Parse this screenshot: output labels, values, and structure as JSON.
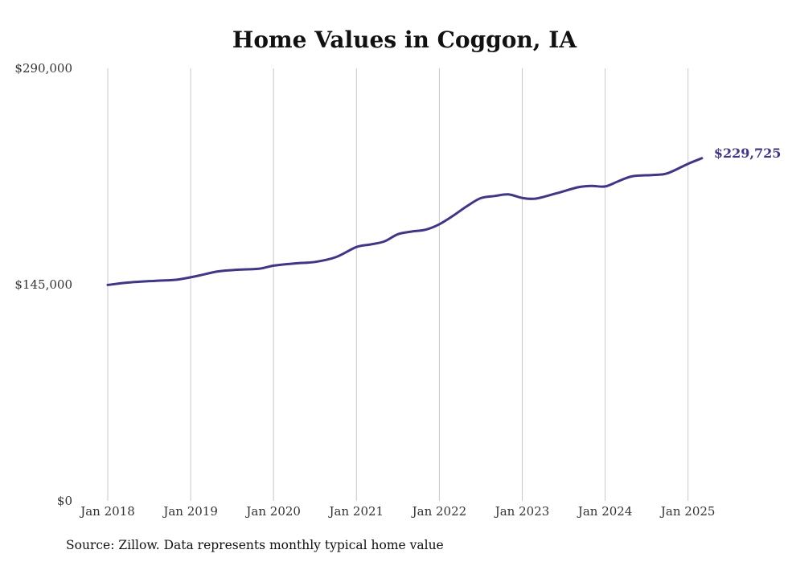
{
  "chart_data": {
    "type": "line",
    "title": "Home Values in Coggon, IA",
    "source": "Source: Zillow. Data represents monthly typical home value",
    "line_color": "#3d3590",
    "ylim": [
      0,
      290000
    ],
    "y_ticks": [
      {
        "value": 0,
        "label": "$0"
      },
      {
        "value": 145000,
        "label": "$145,000"
      },
      {
        "value": 290000,
        "label": "$290,000"
      }
    ],
    "x_ticks": [
      {
        "value": 2018,
        "label": "Jan 2018"
      },
      {
        "value": 2019,
        "label": "Jan 2019"
      },
      {
        "value": 2020,
        "label": "Jan 2020"
      },
      {
        "value": 2021,
        "label": "Jan 2021"
      },
      {
        "value": 2022,
        "label": "Jan 2022"
      },
      {
        "value": 2023,
        "label": "Jan 2023"
      },
      {
        "value": 2024,
        "label": "Jan 2024"
      },
      {
        "value": 2025,
        "label": "Jan 2025"
      }
    ],
    "end_label": "$229,725",
    "grid": "vertical lines at each January",
    "series": [
      {
        "x": [
          "2018-01",
          "2018-04",
          "2018-08",
          "2018-11",
          "2019-02",
          "2019-05",
          "2019-08",
          "2019-11",
          "2020-01",
          "2020-04",
          "2020-07",
          "2020-10",
          "2021-01",
          "2021-03",
          "2021-05",
          "2021-07",
          "2021-09",
          "2021-11",
          "2022-01",
          "2022-03",
          "2022-05",
          "2022-07",
          "2022-09",
          "2022-11",
          "2023-01",
          "2023-03",
          "2023-06",
          "2023-09",
          "2023-11",
          "2024-01",
          "2024-03",
          "2024-05",
          "2024-08",
          "2024-10",
          "2025-01",
          "2025-03"
        ],
        "values": [
          144800,
          146400,
          147600,
          148300,
          150900,
          153900,
          155000,
          155700,
          157700,
          159200,
          160200,
          163400,
          170200,
          171900,
          173900,
          178800,
          180600,
          181800,
          185500,
          191200,
          197600,
          203000,
          204400,
          205500,
          203100,
          202700,
          206300,
          210200,
          211200,
          210800,
          214500,
          217700,
          218500,
          219600,
          226000,
          229725
        ]
      }
    ]
  }
}
